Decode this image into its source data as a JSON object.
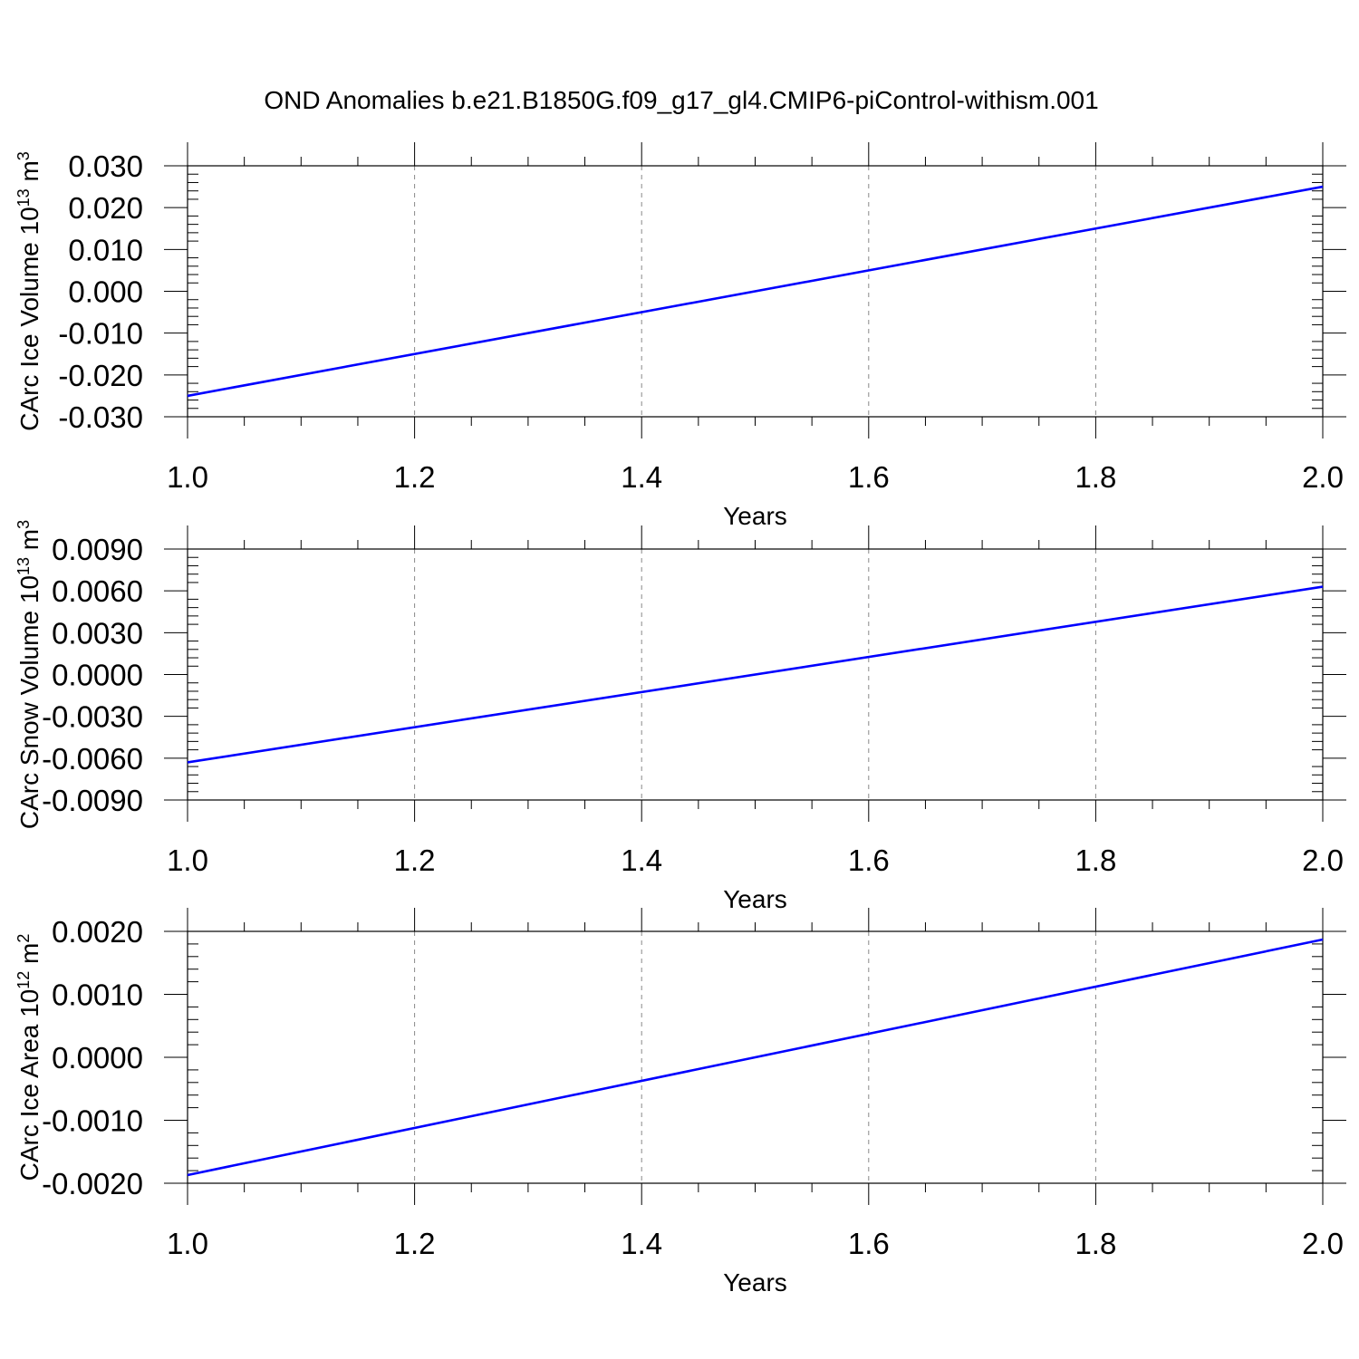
{
  "title": "OND Anomalies b.e21.B1850G.f09_g17_gl4.CMIP6-piControl-withism.001",
  "colors": {
    "line": "#0000ff",
    "axis": "#000000",
    "grid": "#888888",
    "background": "#ffffff"
  },
  "chart_data": [
    {
      "type": "line",
      "ylabel": "CArc Ice Volume 10",
      "ylabel_sup": "13",
      "ylabel_unit": " m",
      "ylabel_unit_sup": "3",
      "xlabel": "Years",
      "xlim": [
        1.0,
        2.0
      ],
      "ylim": [
        -0.03,
        0.03
      ],
      "xticks": [
        1.0,
        1.2,
        1.4,
        1.6,
        1.8,
        2.0
      ],
      "xtick_labels": [
        "1.0",
        "1.2",
        "1.4",
        "1.6",
        "1.8",
        "2.0"
      ],
      "yticks": [
        -0.03,
        -0.02,
        -0.01,
        0.0,
        0.01,
        0.02,
        0.03
      ],
      "ytick_labels": [
        "-0.030",
        "-0.020",
        "-0.010",
        "0.000",
        "0.010",
        "0.020",
        "0.030"
      ],
      "grid": "vertical dashed",
      "series": [
        {
          "x": [
            1.0,
            2.0
          ],
          "y": [
            -0.025,
            0.025
          ]
        }
      ]
    },
    {
      "type": "line",
      "ylabel": "CArc Snow Volume 10",
      "ylabel_sup": "13",
      "ylabel_unit": " m",
      "ylabel_unit_sup": "3",
      "xlabel": "Years",
      "xlim": [
        1.0,
        2.0
      ],
      "ylim": [
        -0.009,
        0.009
      ],
      "xticks": [
        1.0,
        1.2,
        1.4,
        1.6,
        1.8,
        2.0
      ],
      "xtick_labels": [
        "1.0",
        "1.2",
        "1.4",
        "1.6",
        "1.8",
        "2.0"
      ],
      "yticks": [
        -0.009,
        -0.006,
        -0.003,
        0.0,
        0.003,
        0.006,
        0.009
      ],
      "ytick_labels": [
        "-0.0090",
        "-0.0060",
        "-0.0030",
        "0.0000",
        "0.0030",
        "0.0060",
        "0.0090"
      ],
      "grid": "vertical dashed",
      "series": [
        {
          "x": [
            1.0,
            2.0
          ],
          "y": [
            -0.0063,
            0.0063
          ]
        }
      ]
    },
    {
      "type": "line",
      "ylabel": "CArc Ice Area 10",
      "ylabel_sup": "12",
      "ylabel_unit": " m",
      "ylabel_unit_sup": "2",
      "xlabel": "Years",
      "xlim": [
        1.0,
        2.0
      ],
      "ylim": [
        -0.002,
        0.002
      ],
      "xticks": [
        1.0,
        1.2,
        1.4,
        1.6,
        1.8,
        2.0
      ],
      "xtick_labels": [
        "1.0",
        "1.2",
        "1.4",
        "1.6",
        "1.8",
        "2.0"
      ],
      "yticks": [
        -0.002,
        -0.001,
        0.0,
        0.001,
        0.002
      ],
      "ytick_labels": [
        "-0.0020",
        "-0.0010",
        "0.0000",
        "0.0010",
        "0.0020"
      ],
      "grid": "vertical dashed",
      "series": [
        {
          "x": [
            1.0,
            2.0
          ],
          "y": [
            -0.00187,
            0.00187
          ]
        }
      ]
    }
  ]
}
